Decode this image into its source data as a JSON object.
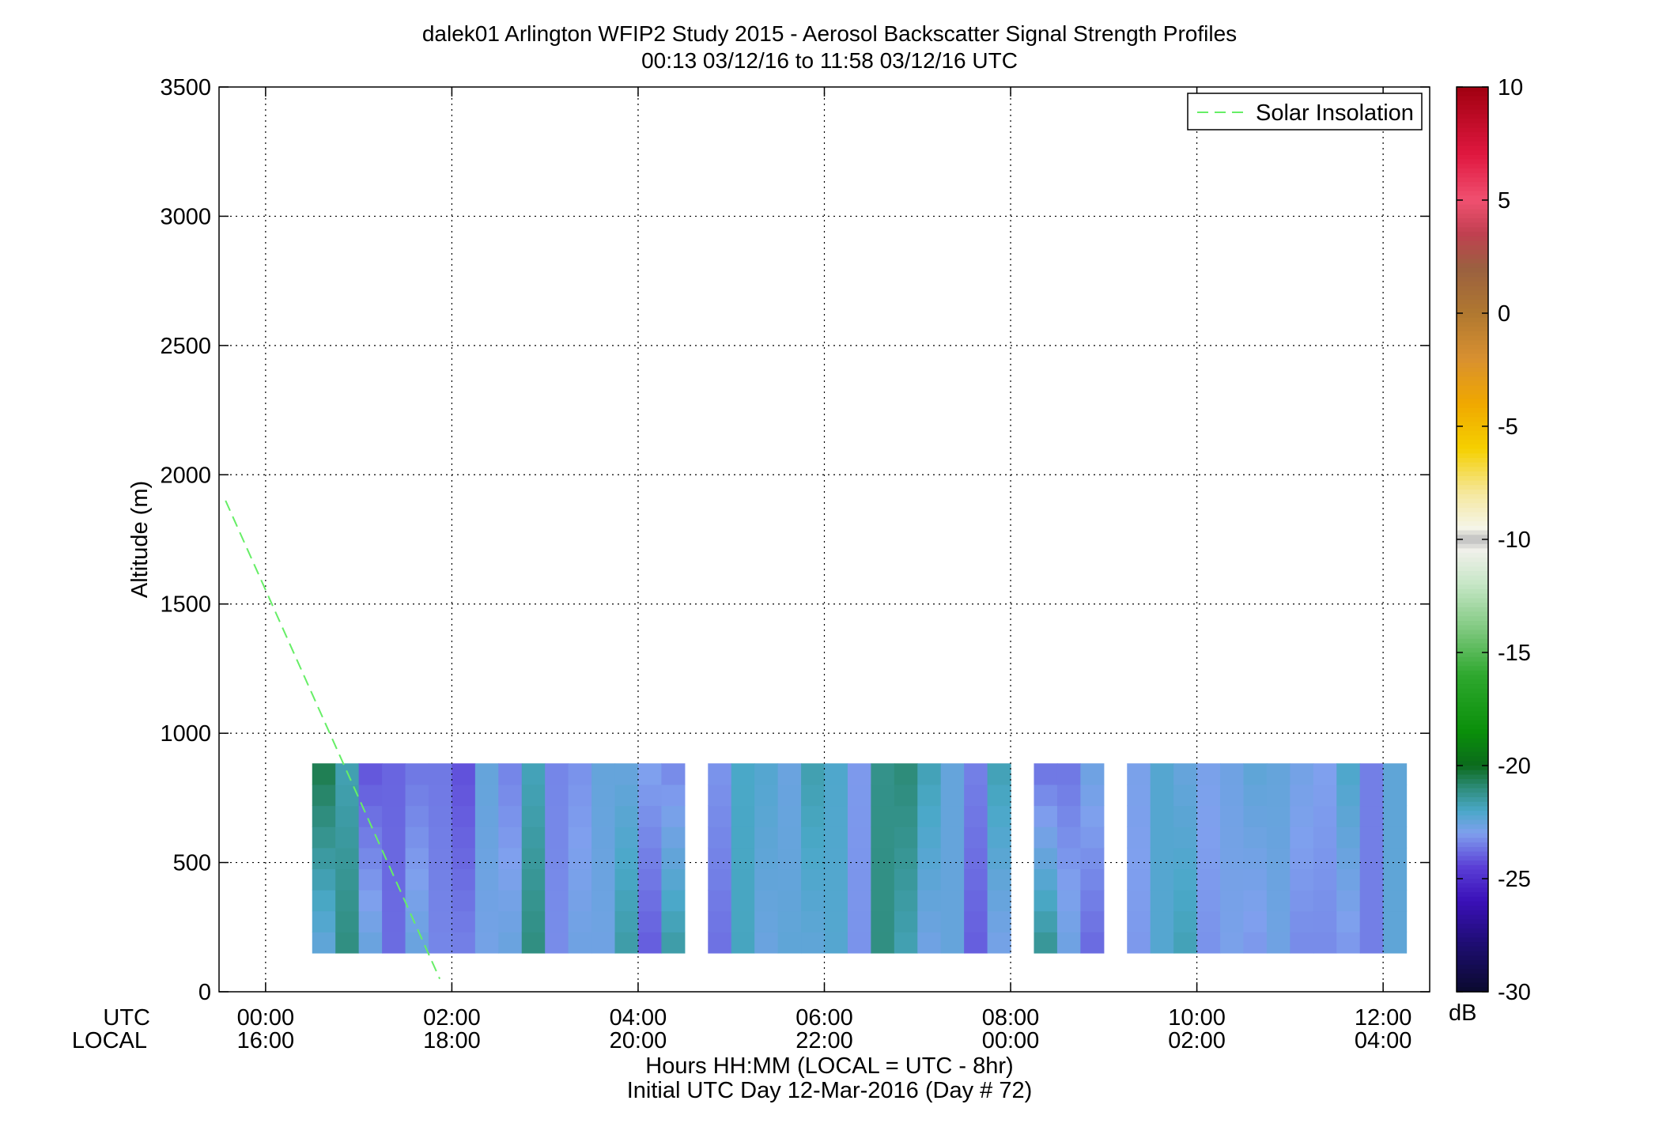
{
  "chart_data": {
    "type": "heatmap",
    "title": "dalek01 Arlington WFIP2 Study 2015 - Aerosol Backscatter Signal Strength Profiles",
    "subtitle": "00:13 03/12/16 to 11:58 03/12/16  UTC",
    "ylabel": "Altitude (m)",
    "xlabel": "Hours HH:MM  (LOCAL = UTC - 8hr)",
    "xlabel2": "Initial UTC Day 12-Mar-2016 (Day # 72)",
    "x_row_labels": [
      "UTC",
      "LOCAL"
    ],
    "xlim_hours": [
      -0.5,
      12.5
    ],
    "ylim": [
      0,
      3500
    ],
    "grid": true,
    "x_ticks": [
      {
        "hour": 0,
        "utc": "00:00",
        "local": "16:00"
      },
      {
        "hour": 2,
        "utc": "02:00",
        "local": "18:00"
      },
      {
        "hour": 4,
        "utc": "04:00",
        "local": "20:00"
      },
      {
        "hour": 6,
        "utc": "06:00",
        "local": "22:00"
      },
      {
        "hour": 8,
        "utc": "08:00",
        "local": "00:00"
      },
      {
        "hour": 10,
        "utc": "10:00",
        "local": "02:00"
      },
      {
        "hour": 12,
        "utc": "12:00",
        "local": "04:00"
      }
    ],
    "y_ticks": [
      {
        "value": 0,
        "label": "0"
      },
      {
        "value": 500,
        "label": "500"
      },
      {
        "value": 1000,
        "label": "1000"
      },
      {
        "value": 1500,
        "label": "1500"
      },
      {
        "value": 2000,
        "label": "2000"
      },
      {
        "value": 2500,
        "label": "2500"
      },
      {
        "value": 3000,
        "label": "3000"
      },
      {
        "value": 3500,
        "label": "3500"
      }
    ],
    "colorbar": {
      "vmin": -30,
      "vmax": 10,
      "unit": "dB",
      "ticks": [
        {
          "value": 10,
          "label": "10"
        },
        {
          "value": 5,
          "label": "5"
        },
        {
          "value": 0,
          "label": "0"
        },
        {
          "value": -5,
          "label": "-5"
        },
        {
          "value": -10,
          "label": "-10"
        },
        {
          "value": -15,
          "label": "-15"
        },
        {
          "value": -20,
          "label": "-20"
        },
        {
          "value": -25,
          "label": "-25"
        },
        {
          "value": -30,
          "label": "-30"
        }
      ]
    },
    "legend": {
      "placement": "top-right",
      "entries": [
        {
          "name": "Solar Insolation",
          "color": "#66ee66",
          "style": "dashed"
        }
      ]
    },
    "solar_insolation_line": [
      {
        "hour": -0.43,
        "alt": 1900
      },
      {
        "hour": 1.87,
        "alt": 50
      }
    ],
    "grid_meta": {
      "col_start_hour": 0.25,
      "col_width_hours": 0.25,
      "row_start_alt": 150,
      "row_height_alt": 81.5
    },
    "profiles": [
      {
        "col": 1,
        "bottom": -22.4,
        "top": -20.6
      },
      {
        "col": 2,
        "bottom": -21.1,
        "top": -21.7
      },
      {
        "col": 3,
        "bottom": -22.6,
        "top": -24.1
      },
      {
        "col": 4,
        "bottom": -23.8,
        "top": -23.9
      },
      {
        "col": 5,
        "bottom": -22.6,
        "top": -23.6
      },
      {
        "col": 6,
        "bottom": -23.4,
        "top": -23.6
      },
      {
        "col": 7,
        "bottom": -23.5,
        "top": -24.2
      },
      {
        "col": 8,
        "bottom": -22.8,
        "top": -22.5
      },
      {
        "col": 9,
        "bottom": -22.6,
        "top": -23.4
      },
      {
        "col": 10,
        "bottom": -21.1,
        "top": -21.8
      },
      {
        "col": 11,
        "bottom": -23.3,
        "top": -23.4
      },
      {
        "col": 12,
        "bottom": -22.7,
        "top": -23.2
      },
      {
        "col": 13,
        "bottom": -22.7,
        "top": -22.5
      },
      {
        "col": 14,
        "bottom": -21.6,
        "top": -22.5
      },
      {
        "col": 15,
        "bottom": -24.0,
        "top": -23.0
      },
      {
        "col": 16,
        "bottom": -21.6,
        "top": -23.3
      },
      {
        "col": 18,
        "bottom": -23.7,
        "top": -23.2
      },
      {
        "col": 19,
        "bottom": -21.9,
        "top": -22.0
      },
      {
        "col": 20,
        "bottom": -22.6,
        "top": -22.2
      },
      {
        "col": 21,
        "bottom": -22.4,
        "top": -22.6
      },
      {
        "col": 22,
        "bottom": -22.4,
        "top": -21.7
      },
      {
        "col": 23,
        "bottom": -22.2,
        "top": -22.1
      },
      {
        "col": 24,
        "bottom": -23.2,
        "top": -23.1
      },
      {
        "col": 25,
        "bottom": -21.1,
        "top": -21.2
      },
      {
        "col": 26,
        "bottom": -21.7,
        "top": -21.0
      },
      {
        "col": 27,
        "bottom": -22.7,
        "top": -21.8
      },
      {
        "col": 28,
        "bottom": -22.5,
        "top": -22.5
      },
      {
        "col": 29,
        "bottom": -24.0,
        "top": -23.5
      },
      {
        "col": 30,
        "bottom": -22.8,
        "top": -21.8
      },
      {
        "col": 32,
        "bottom": -21.4,
        "top": -23.6
      },
      {
        "col": 33,
        "bottom": -22.7,
        "top": -23.6
      },
      {
        "col": 34,
        "bottom": -23.8,
        "top": -22.7
      },
      {
        "col": 36,
        "bottom": -23.1,
        "top": -22.9
      },
      {
        "col": 37,
        "bottom": -22.2,
        "top": -22.2
      },
      {
        "col": 38,
        "bottom": -21.8,
        "top": -22.5
      },
      {
        "col": 39,
        "bottom": -23.2,
        "top": -22.9
      },
      {
        "col": 40,
        "bottom": -22.9,
        "top": -22.7
      },
      {
        "col": 41,
        "bottom": -23.1,
        "top": -22.4
      },
      {
        "col": 42,
        "bottom": -22.7,
        "top": -22.5
      },
      {
        "col": 43,
        "bottom": -23.3,
        "top": -22.8
      },
      {
        "col": 44,
        "bottom": -23.3,
        "top": -23.0
      },
      {
        "col": 45,
        "bottom": -23.1,
        "top": -22.1
      },
      {
        "col": 46,
        "bottom": -23.5,
        "top": -23.5
      },
      {
        "col": 47,
        "bottom": -22.4,
        "top": -22.4
      }
    ]
  }
}
